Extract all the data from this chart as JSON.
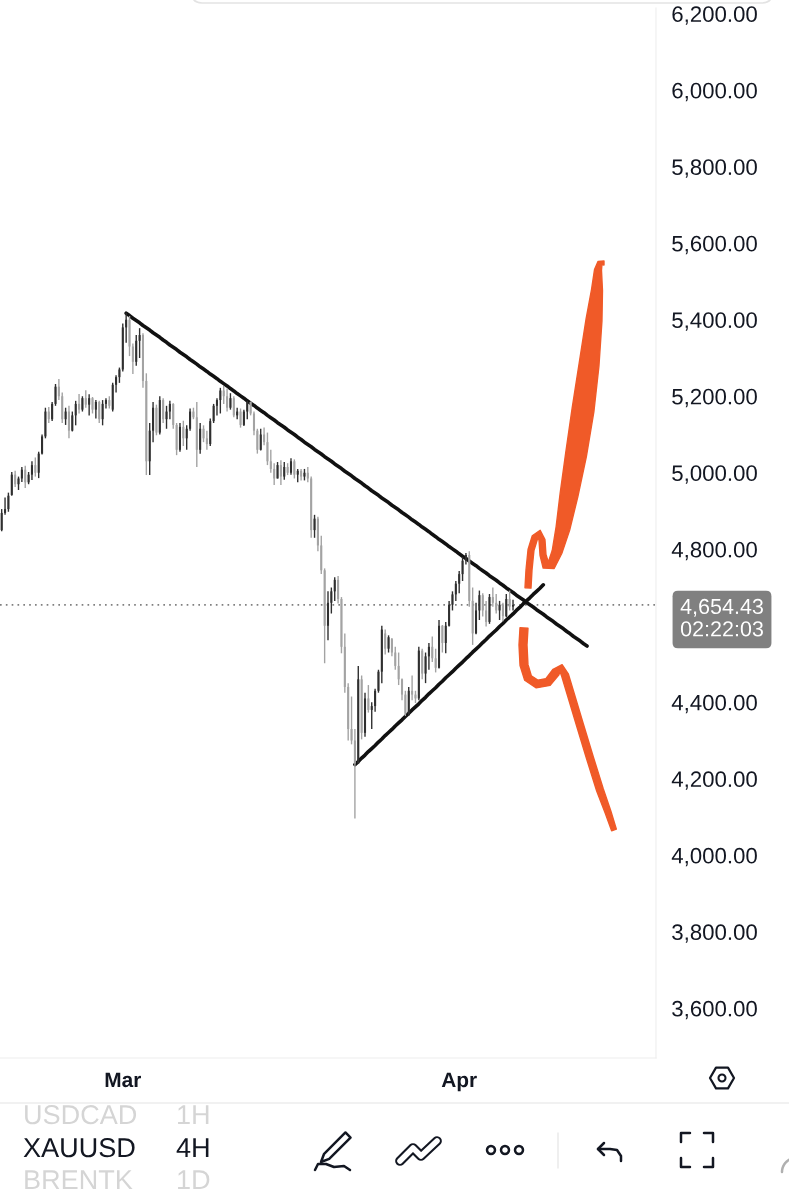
{
  "chart_data": {
    "type": "candlestick",
    "categories": [
      null,
      null,
      null,
      null,
      null,
      null,
      null,
      null,
      null,
      null,
      null,
      null,
      null,
      null,
      null,
      null,
      null,
      null,
      null,
      null,
      null,
      null,
      null,
      null,
      null,
      null,
      null,
      null,
      null,
      null,
      null,
      null,
      null,
      null,
      null,
      null,
      "Mar",
      null,
      null,
      null,
      null,
      null,
      null,
      null,
      null,
      null,
      null,
      null,
      null,
      null,
      null,
      null,
      null,
      null,
      null,
      null,
      null,
      null,
      null,
      null,
      null,
      null,
      null,
      null,
      null,
      null,
      null,
      null,
      null,
      null,
      null,
      null,
      null,
      null,
      null,
      null,
      null,
      null,
      null,
      null,
      null,
      null,
      null,
      null,
      null,
      null,
      null,
      null,
      null,
      null,
      null,
      null,
      null,
      null,
      null,
      null,
      null,
      null,
      null,
      null,
      null,
      null,
      null,
      null,
      null,
      null,
      null,
      null,
      null,
      null,
      null,
      null,
      null,
      null,
      null,
      null,
      null,
      null,
      null,
      null,
      null,
      null,
      null,
      null,
      null,
      null,
      null,
      null,
      null,
      null,
      null,
      null,
      null,
      null,
      null,
      null,
      "Apr",
      null,
      null,
      null,
      null,
      null,
      null,
      null,
      null,
      null,
      null,
      null,
      null,
      null,
      null,
      null,
      null,
      null,
      null,
      null,
      null,
      null,
      null,
      null,
      null,
      null,
      null,
      null,
      null,
      null,
      null,
      null,
      null,
      null,
      null,
      null,
      null,
      null,
      null,
      null,
      null,
      null,
      null,
      null,
      null,
      null,
      null,
      null,
      null,
      null,
      null,
      null,
      null,
      null,
      null,
      null,
      null,
      null,
      null
    ],
    "ohlc": [
      [
        4850,
        4905,
        4847,
        4895
      ],
      [
        4895,
        4935,
        4890,
        4905
      ],
      [
        4905,
        4948,
        4898,
        4940
      ],
      [
        4942,
        5002,
        4940,
        4995
      ],
      [
        4995,
        5005,
        4963,
        4970
      ],
      [
        4970,
        4990,
        4955,
        4985
      ],
      [
        4985,
        5015,
        4976,
        5008
      ],
      [
        5008,
        5018,
        4960,
        4975
      ],
      [
        4975,
        5002,
        4970,
        4995
      ],
      [
        4995,
        5030,
        4981,
        5020
      ],
      [
        5020,
        5040,
        4990,
        5000
      ],
      [
        5000,
        5055,
        4986,
        5050
      ],
      [
        5050,
        5100,
        5048,
        5095
      ],
      [
        5095,
        5170,
        5090,
        5160
      ],
      [
        5160,
        5172,
        5130,
        5140
      ],
      [
        5140,
        5185,
        5135,
        5180
      ],
      [
        5180,
        5232,
        5175,
        5225
      ],
      [
        5225,
        5245,
        5190,
        5200
      ],
      [
        5200,
        5210,
        5130,
        5140
      ],
      [
        5140,
        5170,
        5125,
        5160
      ],
      [
        5160,
        5175,
        5090,
        5110
      ],
      [
        5110,
        5160,
        5108,
        5150
      ],
      [
        5150,
        5188,
        5124,
        5180
      ],
      [
        5180,
        5206,
        5155,
        5165
      ],
      [
        5165,
        5200,
        5160,
        5195
      ],
      [
        5195,
        5216,
        5170,
        5178
      ],
      [
        5178,
        5205,
        5150,
        5195
      ],
      [
        5195,
        5198,
        5155,
        5165
      ],
      [
        5165,
        5190,
        5142,
        5185
      ],
      [
        5185,
        5188,
        5130,
        5140
      ],
      [
        5140,
        5190,
        5124,
        5180
      ],
      [
        5180,
        5195,
        5168,
        5190
      ],
      [
        5190,
        5200,
        5168,
        5175
      ],
      [
        5165,
        5235,
        5160,
        5230
      ],
      [
        5230,
        5255,
        5210,
        5250
      ],
      [
        5250,
        5275,
        5235,
        5270
      ],
      [
        5270,
        5390,
        5265,
        5380
      ],
      [
        5380,
        5418,
        5340,
        5400
      ],
      [
        5400,
        5410,
        5305,
        5330
      ],
      [
        5330,
        5338,
        5258,
        5290
      ],
      [
        5290,
        5360,
        5280,
        5345
      ],
      [
        5345,
        5378,
        5300,
        5360
      ],
      [
        5360,
        5365,
        5222,
        5240
      ],
      [
        5240,
        5260,
        4994,
        5030
      ],
      [
        5030,
        5130,
        4994,
        5110
      ],
      [
        5110,
        5185,
        5080,
        5170
      ],
      [
        5170,
        5178,
        5098,
        5105
      ],
      [
        5105,
        5200,
        5100,
        5190
      ],
      [
        5190,
        5195,
        5130,
        5140
      ],
      [
        5140,
        5175,
        5115,
        5160
      ],
      [
        5160,
        5188,
        5140,
        5180
      ],
      [
        5180,
        5182,
        5115,
        5125
      ],
      [
        5125,
        5130,
        5046,
        5060
      ],
      [
        5060,
        5130,
        5055,
        5120
      ],
      [
        5120,
        5136,
        5070,
        5090
      ],
      [
        5090,
        5124,
        5060,
        5115
      ],
      [
        5115,
        5168,
        5110,
        5160
      ],
      [
        5160,
        5170,
        5140,
        5145
      ],
      [
        5145,
        5185,
        5015,
        5060
      ],
      [
        5060,
        5130,
        5050,
        5115
      ],
      [
        5115,
        5124,
        5080,
        5090
      ],
      [
        5090,
        5110,
        5060,
        5075
      ],
      [
        5075,
        5142,
        5070,
        5135
      ],
      [
        5135,
        5180,
        5130,
        5175
      ],
      [
        5175,
        5195,
        5150,
        5190
      ],
      [
        5190,
        5222,
        5155,
        5215
      ],
      [
        5215,
        5227,
        5180,
        5200
      ],
      [
        5200,
        5220,
        5160,
        5170
      ],
      [
        5170,
        5208,
        5165,
        5195
      ],
      [
        5195,
        5200,
        5145,
        5150
      ],
      [
        5150,
        5170,
        5140,
        5160
      ],
      [
        5160,
        5168,
        5118,
        5125
      ],
      [
        5125,
        5165,
        5122,
        5160
      ],
      [
        5160,
        5188,
        5140,
        5185
      ],
      [
        5185,
        5186,
        5150,
        5155
      ],
      [
        5155,
        5160,
        5098,
        5110
      ],
      [
        5110,
        5115,
        5050,
        5060
      ],
      [
        5060,
        5115,
        5058,
        5100
      ],
      [
        5100,
        5118,
        5072,
        5080
      ],
      [
        5080,
        5105,
        5020,
        5030
      ],
      [
        5030,
        5060,
        5000,
        5010
      ],
      [
        5010,
        5025,
        4968,
        4985
      ],
      [
        4985,
        5028,
        4985,
        5020
      ],
      [
        5020,
        5033,
        4968,
        4990
      ],
      [
        4990,
        5028,
        4982,
        5015
      ],
      [
        5015,
        5025,
        4994,
        5000
      ],
      [
        5000,
        5038,
        4995,
        5030
      ],
      [
        5030,
        5035,
        4985,
        4995
      ],
      [
        4995,
        5010,
        4975,
        5005
      ],
      [
        5005,
        5010,
        4980,
        4990
      ],
      [
        4990,
        5010,
        4980,
        5000
      ],
      [
        5000,
        5015,
        4975,
        4985
      ],
      [
        4985,
        4990,
        4830,
        4850
      ],
      [
        4850,
        4890,
        4830,
        4880
      ],
      [
        4880,
        4885,
        4795,
        4810
      ],
      [
        4810,
        4835,
        4735,
        4745
      ],
      [
        4745,
        4750,
        4502,
        4600
      ],
      [
        4600,
        4690,
        4562,
        4660
      ],
      [
        4660,
        4700,
        4632,
        4690
      ],
      [
        4690,
        4727,
        4665,
        4720
      ],
      [
        4720,
        4730,
        4658,
        4670
      ],
      [
        4670,
        4675,
        4528,
        4545
      ],
      [
        4545,
        4580,
        4425,
        4440
      ],
      [
        4440,
        4450,
        4300,
        4330
      ],
      [
        4330,
        4415,
        4290,
        4300
      ],
      [
        4300,
        4330,
        4096,
        4240
      ],
      [
        4240,
        4495,
        4240,
        4460
      ],
      [
        4460,
        4470,
        4303,
        4320
      ],
      [
        4320,
        4425,
        4310,
        4410
      ],
      [
        4410,
        4445,
        4373,
        4380
      ],
      [
        4380,
        4400,
        4330,
        4390
      ],
      [
        4390,
        4435,
        4375,
        4430
      ],
      [
        4430,
        4485,
        4425,
        4480
      ],
      [
        4480,
        4600,
        4450,
        4590
      ],
      [
        4580,
        4590,
        4525,
        4540
      ],
      [
        4540,
        4575,
        4530,
        4570
      ],
      [
        4565,
        4568,
        4520,
        4530
      ],
      [
        4530,
        4545,
        4485,
        4495
      ],
      [
        4495,
        4530,
        4445,
        4460
      ],
      [
        4460,
        4462,
        4405,
        4420
      ],
      [
        4420,
        4430,
        4364,
        4370
      ],
      [
        4370,
        4440,
        4365,
        4430
      ],
      [
        4430,
        4470,
        4405,
        4420
      ],
      [
        4420,
        4430,
        4398,
        4410
      ],
      [
        4410,
        4545,
        4405,
        4535
      ],
      [
        4535,
        4540,
        4460,
        4475
      ],
      [
        4475,
        4530,
        4450,
        4520
      ],
      [
        4520,
        4555,
        4485,
        4545
      ],
      [
        4545,
        4572,
        4505,
        4515
      ],
      [
        4515,
        4540,
        4478,
        4490
      ],
      [
        4490,
        4615,
        4488,
        4600
      ],
      [
        4600,
        4602,
        4530,
        4555
      ],
      [
        4555,
        4610,
        4528,
        4600
      ],
      [
        4600,
        4665,
        4598,
        4655
      ],
      [
        4655,
        4690,
        4640,
        4682
      ],
      [
        4682,
        4717,
        4665,
        4710
      ],
      [
        4710,
        4743,
        4685,
        4735
      ],
      [
        4735,
        4780,
        4717,
        4770
      ],
      [
        4770,
        4790,
        4760,
        4785
      ],
      [
        4785,
        4795,
        4650,
        4665
      ],
      [
        4665,
        4700,
        4550,
        4580
      ],
      [
        4580,
        4660,
        4578,
        4640
      ],
      [
        4640,
        4692,
        4615,
        4680
      ],
      [
        4680,
        4685,
        4624,
        4640
      ],
      [
        4640,
        4665,
        4598,
        4610
      ],
      [
        4610,
        4683,
        4605,
        4675
      ],
      [
        4675,
        4700,
        4650,
        4660
      ],
      [
        4660,
        4683,
        4632,
        4640
      ],
      [
        4640,
        4665,
        4615,
        4655
      ],
      [
        4655,
        4660,
        4612,
        4625
      ],
      [
        4625,
        4683,
        4622,
        4670
      ],
      [
        4670,
        4692,
        4640,
        4650
      ],
      [
        4650,
        4668,
        4640,
        4654.43
      ],
      null,
      null,
      null,
      null,
      null,
      null,
      null,
      null,
      null,
      null,
      null,
      null,
      null,
      null,
      null,
      null,
      null,
      null,
      null,
      null,
      null,
      null,
      null,
      null,
      null,
      null,
      null,
      null,
      null,
      null,
      null,
      null,
      null,
      null,
      null,
      null,
      null,
      null,
      null,
      null,
      null,
      null
    ],
    "colors": [
      "#2f2f2f",
      "#2f2f2f",
      "#2f2f2f",
      "#2f2f2f",
      "#a3a3a3",
      "#2f2f2f",
      "#2f2f2f",
      "#a3a3a3",
      "#2f2f2f",
      "#2f2f2f",
      "#a3a3a3",
      "#2f2f2f",
      "#2f2f2f",
      "#2f2f2f",
      "#a3a3a3",
      "#2f2f2f",
      "#2f2f2f",
      "#a3a3a3",
      "#a3a3a3",
      "#2f2f2f",
      "#a3a3a3",
      "#2f2f2f",
      "#2f2f2f",
      "#a3a3a3",
      "#2f2f2f",
      "#a3a3a3",
      "#2f2f2f",
      "#a3a3a3",
      "#2f2f2f",
      "#a3a3a3",
      "#2f2f2f",
      "#2f2f2f",
      "#a3a3a3",
      "#2f2f2f",
      "#2f2f2f",
      "#2f2f2f",
      "#2f2f2f",
      "#2f2f2f",
      "#a3a3a3",
      "#a3a3a3",
      "#2f2f2f",
      "#2f2f2f",
      "#a3a3a3",
      "#a3a3a3",
      "#2f2f2f",
      "#2f2f2f",
      "#a3a3a3",
      "#2f2f2f",
      "#a3a3a3",
      "#2f2f2f",
      "#2f2f2f",
      "#a3a3a3",
      "#a3a3a3",
      "#2f2f2f",
      "#a3a3a3",
      "#2f2f2f",
      "#2f2f2f",
      "#a3a3a3",
      "#a3a3a3",
      "#2f2f2f",
      "#a3a3a3",
      "#a3a3a3",
      "#2f2f2f",
      "#2f2f2f",
      "#2f2f2f",
      "#2f2f2f",
      "#a3a3a3",
      "#a3a3a3",
      "#2f2f2f",
      "#a3a3a3",
      "#2f2f2f",
      "#a3a3a3",
      "#2f2f2f",
      "#2f2f2f",
      "#a3a3a3",
      "#a3a3a3",
      "#a3a3a3",
      "#2f2f2f",
      "#a3a3a3",
      "#a3a3a3",
      "#a3a3a3",
      "#a3a3a3",
      "#2f2f2f",
      "#a3a3a3",
      "#2f2f2f",
      "#a3a3a3",
      "#2f2f2f",
      "#a3a3a3",
      "#2f2f2f",
      "#a3a3a3",
      "#2f2f2f",
      "#a3a3a3",
      "#a3a3a3",
      "#2f2f2f",
      "#a3a3a3",
      "#a3a3a3",
      "#a3a3a3",
      "#2f2f2f",
      "#2f2f2f",
      "#2f2f2f",
      "#a3a3a3",
      "#a3a3a3",
      "#a3a3a3",
      "#a3a3a3",
      "#a3a3a3",
      "#a3a3a3",
      "#2f2f2f",
      "#a3a3a3",
      "#2f2f2f",
      "#a3a3a3",
      "#2f2f2f",
      "#2f2f2f",
      "#2f2f2f",
      "#2f2f2f",
      "#a3a3a3",
      "#2f2f2f",
      "#a3a3a3",
      "#a3a3a3",
      "#a3a3a3",
      "#a3a3a3",
      "#a3a3a3",
      "#2f2f2f",
      "#a3a3a3",
      "#a3a3a3",
      "#2f2f2f",
      "#a3a3a3",
      "#2f2f2f",
      "#2f2f2f",
      "#a3a3a3",
      "#a3a3a3",
      "#2f2f2f",
      "#a3a3a3",
      "#2f2f2f",
      "#2f2f2f",
      "#2f2f2f",
      "#2f2f2f",
      "#2f2f2f",
      "#2f2f2f",
      "#2f2f2f",
      "#a3a3a3",
      "#a3a3a3",
      "#2f2f2f",
      "#2f2f2f",
      "#a3a3a3",
      "#a3a3a3",
      "#2f2f2f",
      "#a3a3a3",
      "#a3a3a3",
      "#2f2f2f",
      "#a3a3a3",
      "#2f2f2f",
      "#a3a3a3",
      "#2f2f2f",
      null,
      null,
      null,
      null,
      null,
      null,
      null,
      null,
      null,
      null,
      null,
      null,
      null,
      null,
      null,
      null,
      null,
      null,
      null,
      null,
      null,
      null,
      null,
      null,
      null,
      null,
      null,
      null,
      null,
      null,
      null,
      null,
      null,
      null,
      null,
      null,
      null,
      null,
      null,
      null,
      null,
      null
    ],
    "series": [
      {
        "type": "line",
        "color": "#111111",
        "values": [
          null,
          null,
          null,
          null,
          null,
          null,
          null,
          null,
          null,
          null,
          null,
          null,
          null,
          null,
          null,
          null,
          null,
          null,
          null,
          null,
          null,
          null,
          null,
          null,
          null,
          null,
          null,
          null,
          null,
          null,
          null,
          null,
          null,
          null,
          null,
          null,
          null,
          5417,
          5411,
          5404,
          5398,
          5392,
          5385,
          5379,
          5373,
          5366,
          5360,
          5354,
          5347,
          5341,
          5334,
          5328,
          5322,
          5315,
          5309,
          5303,
          5296,
          5290,
          5284,
          5277,
          5271,
          5265,
          5258,
          5252,
          5246,
          5239,
          5233,
          5227,
          5220,
          5214,
          5207,
          5201,
          5195,
          5188,
          5182,
          5176,
          5169,
          5163,
          5157,
          5150,
          5144,
          5138,
          5131,
          5125,
          5119,
          5112,
          5106,
          5100,
          5093,
          5087,
          5080,
          5074,
          5068,
          5061,
          5055,
          5049,
          5042,
          5036,
          5030,
          5023,
          5017,
          5011,
          5004,
          4998,
          4992,
          4985,
          4979,
          4973,
          4966,
          4960,
          4953,
          4947,
          4941,
          4934,
          4928,
          4922,
          4915,
          4909,
          4903,
          4896,
          4890,
          4884,
          4877,
          4871,
          4865,
          4858,
          4852,
          4846,
          4839,
          4833,
          4826,
          4820,
          4814,
          4807,
          4801,
          4795,
          4788,
          4782,
          4776,
          4769,
          4763,
          4757,
          4750,
          4744,
          4738,
          4731,
          4725,
          4719,
          4712,
          4706,
          4699,
          4693,
          4687,
          4680,
          4674,
          4668,
          4661,
          4655,
          4649,
          4642,
          4636,
          4630,
          4623,
          4617,
          4611,
          4604,
          4598,
          4592,
          4585,
          4579,
          4572,
          4566,
          4560,
          4553,
          4547,
          null,
          null,
          null,
          null,
          null,
          null,
          null,
          null,
          null,
          null,
          null,
          null,
          null,
          null,
          null,
          null,
          null,
          null,
          null,
          null
        ]
      },
      {
        "type": "line",
        "color": "#111111",
        "values": [
          null,
          null,
          null,
          null,
          null,
          null,
          null,
          null,
          null,
          null,
          null,
          null,
          null,
          null,
          null,
          null,
          null,
          null,
          null,
          null,
          null,
          null,
          null,
          null,
          null,
          null,
          null,
          null,
          null,
          null,
          null,
          null,
          null,
          null,
          null,
          null,
          null,
          null,
          null,
          null,
          null,
          null,
          null,
          null,
          null,
          null,
          null,
          null,
          null,
          null,
          null,
          null,
          null,
          null,
          null,
          null,
          null,
          null,
          null,
          null,
          null,
          null,
          null,
          null,
          null,
          null,
          null,
          null,
          null,
          null,
          null,
          null,
          null,
          null,
          null,
          null,
          null,
          null,
          null,
          null,
          null,
          null,
          null,
          null,
          null,
          null,
          null,
          null,
          null,
          null,
          null,
          null,
          null,
          null,
          null,
          null,
          null,
          null,
          null,
          null,
          null,
          null,
          null,
          null,
          null,
          4237,
          4245,
          4254,
          4262,
          4271,
          4279,
          4287,
          4296,
          4304,
          4313,
          4321,
          4329,
          4338,
          4346,
          4354,
          4363,
          4371,
          4380,
          4388,
          4396,
          4405,
          4413,
          4422,
          4430,
          4438,
          4447,
          4455,
          4464,
          4472,
          4480,
          4489,
          4497,
          4505,
          4514,
          4522,
          4531,
          4539,
          4547,
          4556,
          4564,
          4573,
          4581,
          4589,
          4598,
          4606,
          4615,
          4623,
          4631,
          4640,
          4648,
          4657,
          4665,
          4673,
          4682,
          4690,
          4698,
          4707,
          null,
          null,
          null,
          null,
          null,
          null,
          null,
          null,
          null,
          null,
          null,
          null,
          null,
          null,
          null,
          null,
          null,
          null,
          null,
          null,
          null,
          null,
          null,
          null,
          null,
          null,
          null,
          null,
          null,
          null,
          null,
          null,
          null
        ]
      }
    ],
    "ylim": [
      3470,
      6215
    ],
    "yticks": [
      {
        "value": 3600,
        "label": "3,600.00"
      },
      {
        "value": 3800,
        "label": "3,800.00"
      },
      {
        "value": 4000,
        "label": "4,000.00"
      },
      {
        "value": 4200,
        "label": "4,200.00"
      },
      {
        "value": 4400,
        "label": "4,400.00"
      },
      {
        "value": 4800,
        "label": "4,800.00"
      },
      {
        "value": 5000,
        "label": "5,000.00"
      },
      {
        "value": 5200,
        "label": "5,200.00"
      },
      {
        "value": 5400,
        "label": "5,400.00"
      },
      {
        "value": 5600,
        "label": "5,600.00"
      },
      {
        "value": 5800,
        "label": "5,800.00"
      },
      {
        "value": 6000,
        "label": "6,000.00"
      },
      {
        "value": 6200,
        "label": "6,200.00"
      }
    ],
    "ref_lines": [
      {
        "axis": "y",
        "value": 4654.43,
        "label": "4,654.43\n02:22:03",
        "color": "#808080",
        "line_style": "dotted"
      }
    ],
    "annotations": [
      "USDCAD",
      "1H",
      "XAUUSD",
      "4H",
      "BRENTK",
      "1D"
    ]
  }
}
